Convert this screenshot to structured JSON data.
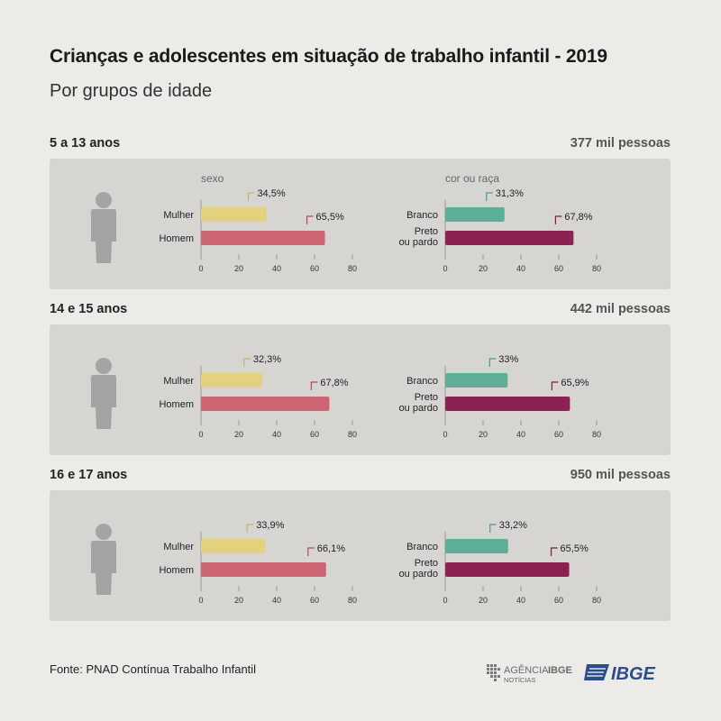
{
  "header": {
    "title": "Crianças e adolescentes em situação de trabalho infantil - 2019",
    "subtitle": "Por grupos de idade"
  },
  "colors": {
    "mulher": "#e3d17e",
    "homem": "#cc6574",
    "branco": "#5fae98",
    "preto_pardo": "#8a2352",
    "person_icon": "#a3a3a3",
    "panel_bg": "#d6d5d2"
  },
  "chart_data": [
    {
      "type": "bar",
      "group": "5 a 13 anos",
      "total": "377 mil pessoas",
      "panels": [
        {
          "title": "sexo",
          "categories": [
            "Mulher",
            "Homem"
          ],
          "values": [
            34.5,
            65.5
          ],
          "labels": [
            "34,5%",
            "65,5%"
          ],
          "ticks": [
            0,
            20,
            40,
            60,
            80
          ],
          "xlim": [
            0,
            80
          ]
        },
        {
          "title": "cor ou raça",
          "categories": [
            "Branco",
            "Preto ou pardo"
          ],
          "values": [
            31.3,
            67.8
          ],
          "labels": [
            "31,3%",
            "67,8%"
          ],
          "ticks": [
            0,
            20,
            40,
            60,
            80
          ],
          "xlim": [
            0,
            80
          ]
        }
      ]
    },
    {
      "type": "bar",
      "group": "14 e 15 anos",
      "total": "442 mil pessoas",
      "panels": [
        {
          "title": "",
          "categories": [
            "Mulher",
            "Homem"
          ],
          "values": [
            32.3,
            67.8
          ],
          "labels": [
            "32,3%",
            "67,8%"
          ],
          "ticks": [
            0,
            20,
            40,
            60,
            80
          ],
          "xlim": [
            0,
            80
          ]
        },
        {
          "title": "",
          "categories": [
            "Branco",
            "Preto ou pardo"
          ],
          "values": [
            33,
            65.9
          ],
          "labels": [
            "33%",
            "65,9%"
          ],
          "ticks": [
            0,
            20,
            40,
            60,
            80
          ],
          "xlim": [
            0,
            80
          ]
        }
      ]
    },
    {
      "type": "bar",
      "group": "16 e 17 anos",
      "total": "950 mil pessoas",
      "panels": [
        {
          "title": "",
          "categories": [
            "Mulher",
            "Homem"
          ],
          "values": [
            33.9,
            66.1
          ],
          "labels": [
            "33,9%",
            "66,1%"
          ],
          "ticks": [
            0,
            20,
            40,
            60,
            80
          ],
          "xlim": [
            0,
            80
          ]
        },
        {
          "title": "",
          "categories": [
            "Branco",
            "Preto ou pardo"
          ],
          "values": [
            33.2,
            65.5
          ],
          "labels": [
            "33,2%",
            "65,5%"
          ],
          "ticks": [
            0,
            20,
            40,
            60,
            80
          ],
          "xlim": [
            0,
            80
          ]
        }
      ]
    }
  ],
  "footer": {
    "source": "Fonte: PNAD Contínua Trabalho Infantil",
    "agencia_logo_line1": "AGÊNCIA",
    "agencia_logo_brand": "IBGE",
    "agencia_logo_line2": "NOTÍCIAS",
    "ibge_logo": "IBGE"
  }
}
